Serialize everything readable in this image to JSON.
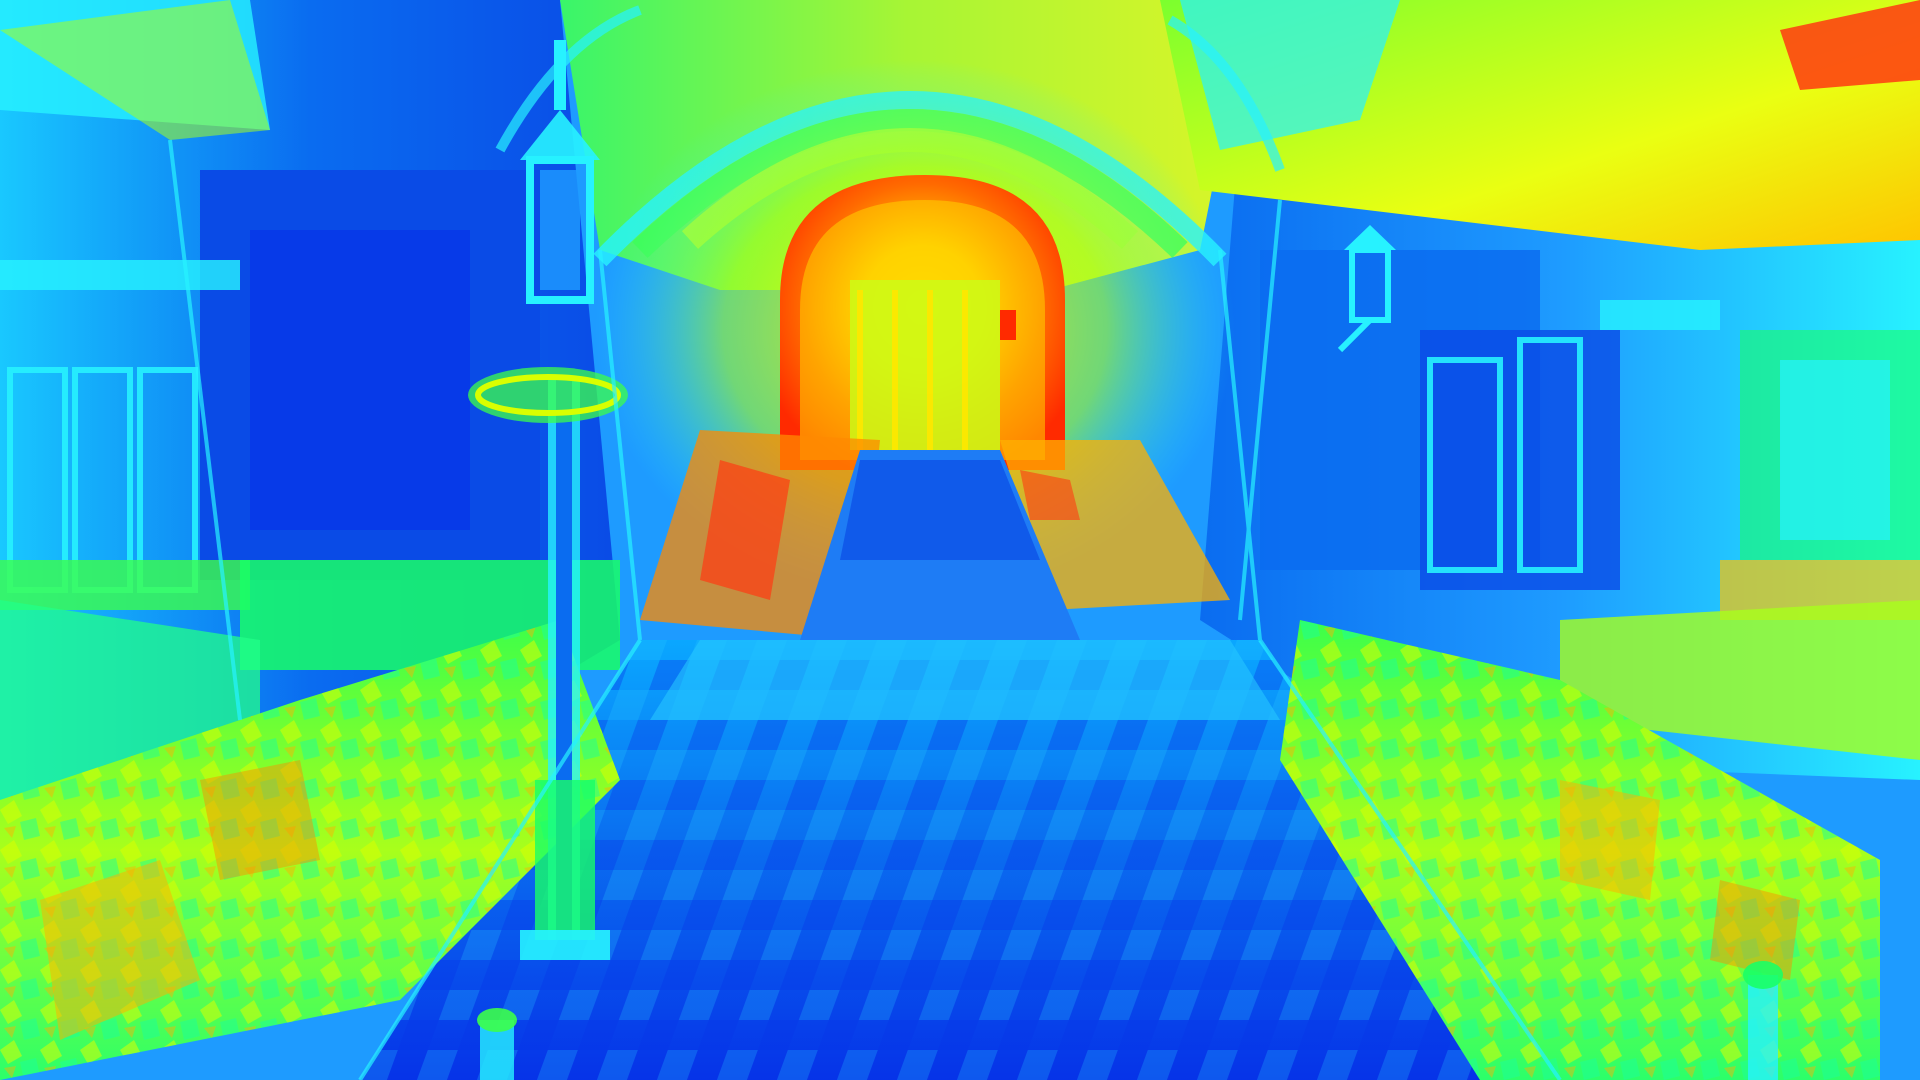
{
  "view": {
    "mode": "overdraw-heatmap",
    "heatmap_palette": [
      "#0000ff",
      "#0a6cf0",
      "#00e5ff",
      "#19ff66",
      "#d9ff00",
      "#ffc400",
      "#ff2a00"
    ],
    "colors": {
      "cold_floor": "#0a4be6",
      "cool_walls": "#1e9bff",
      "cyan_edges": "#27f2ff",
      "green_props": "#3cff4a",
      "yellow_ceiling": "#e8ff10",
      "hot_archway": "#ff3a12"
    },
    "scene_elements": [
      "left-building-facade",
      "right-building-facade",
      "central-archway",
      "arch-tunnel-interior",
      "vaulted-ceiling",
      "left-street-lamp",
      "right-wall-lantern",
      "left-hedge-planter",
      "right-hedge-planter",
      "tiled-floor",
      "right-bollard-post",
      "left-small-post"
    ]
  }
}
